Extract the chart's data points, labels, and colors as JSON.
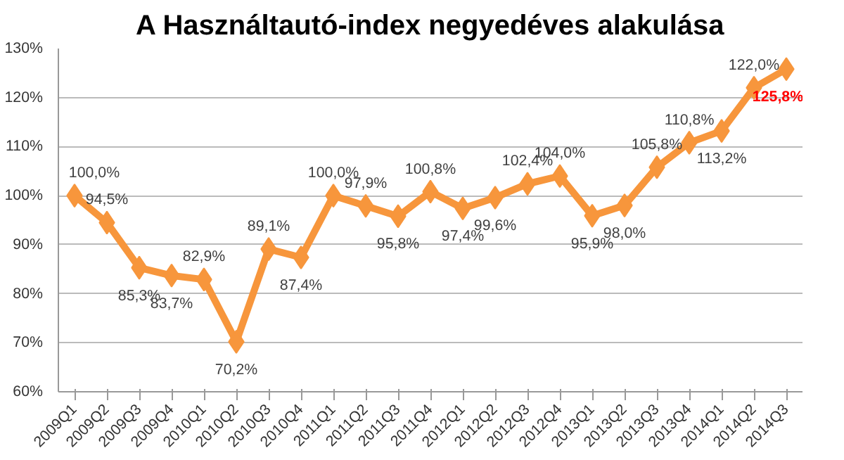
{
  "chart_data": {
    "type": "line",
    "title": "A Használtautó-index negyedéves alakulása",
    "categories": [
      "2009Q1",
      "2009Q2",
      "2009Q3",
      "2009Q4",
      "2010Q1",
      "2010Q2",
      "2010Q3",
      "2010Q4",
      "2011Q1",
      "2011Q2",
      "2011Q3",
      "2011Q4",
      "2012Q1",
      "2012Q2",
      "2012Q3",
      "2012Q4",
      "2013Q1",
      "2013Q2",
      "2013Q3",
      "2013Q4",
      "2014Q1",
      "2014Q2",
      "2014Q3"
    ],
    "series": [
      {
        "color": "#f7963c",
        "values": [
          100.0,
          94.5,
          85.3,
          83.7,
          82.9,
          70.2,
          89.1,
          87.4,
          100.0,
          97.9,
          95.8,
          100.8,
          97.4,
          99.6,
          102.4,
          104.0,
          95.9,
          98.0,
          105.8,
          110.8,
          113.2,
          122.0,
          125.8
        ],
        "value_labels": [
          "100,0%",
          "94,5%",
          "85,3%",
          "83,7%",
          "82,9%",
          "70,2%",
          "89,1%",
          "87,4%",
          "100,0%",
          "97,9%",
          "95,8%",
          "100,8%",
          "97,4%",
          "99,6%",
          "102,4%",
          "104,0%",
          "95,9%",
          "98,0%",
          "105,8%",
          "110,8%",
          "113,2%",
          "122,0%",
          "125,8%"
        ]
      }
    ],
    "ylim": [
      60,
      130
    ],
    "yticks": [
      {
        "value": 60,
        "label": "60%"
      },
      {
        "value": 70,
        "label": "70%"
      },
      {
        "value": 80,
        "label": "80%"
      },
      {
        "value": 90,
        "label": "90%"
      },
      {
        "value": 100,
        "label": "100%"
      },
      {
        "value": 110,
        "label": "110%"
      },
      {
        "value": 120,
        "label": "120%"
      },
      {
        "value": 130,
        "label": "130%"
      }
    ],
    "grid": "y",
    "marker": "diamond",
    "line_style": "solid"
  }
}
